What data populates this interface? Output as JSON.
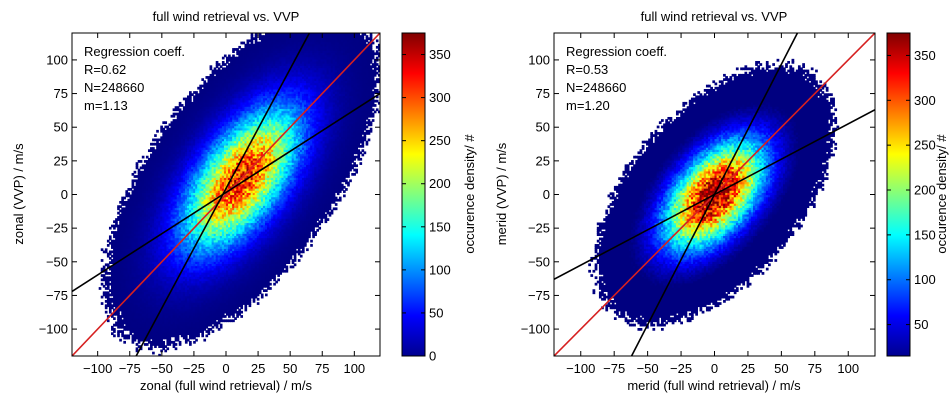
{
  "chart_data": [
    {
      "type": "heatmap",
      "title": "full wind retrieval vs. VVP",
      "xlabel": "zonal (full wind retrieval) / m/s",
      "ylabel": "zonal (VVP) / m/s",
      "xlim": [
        -120,
        120
      ],
      "ylim": [
        -120,
        120
      ],
      "xticks": [
        -100,
        -75,
        -50,
        -25,
        0,
        25,
        50,
        75,
        100
      ],
      "yticks": [
        -100,
        -75,
        -50,
        -25,
        0,
        25,
        50,
        75,
        100
      ],
      "xtick_labels": [
        "−100",
        "−75",
        "−50",
        "−25",
        "0",
        "25",
        "50",
        "75",
        "100"
      ],
      "ytick_labels": [
        "−100",
        "−75",
        "−50",
        "−25",
        "0",
        "25",
        "50",
        "75",
        "100"
      ],
      "annotation": [
        "Regression coeff.",
        "R=0.62",
        "N=248660",
        "m=1.13"
      ],
      "regression": {
        "R": 0.62,
        "N": 248660,
        "m": 1.13
      },
      "density": {
        "cx": 12,
        "cy": 12,
        "sx": 30,
        "sy": 35,
        "rho": 0.62,
        "peak": 320
      },
      "lines": [
        {
          "color": "#d62020",
          "points": [
            [
              -120,
              -120
            ],
            [
              120,
              120
            ]
          ]
        },
        {
          "color": "#000000",
          "points": [
            [
              -120,
              -72
            ],
            [
              120,
              75
            ]
          ]
        },
        {
          "color": "#000000",
          "points": [
            [
              -70,
              -120
            ],
            [
              65,
              120
            ]
          ]
        }
      ],
      "colorbar": {
        "label": "occurence density/ #",
        "range": [
          0,
          375
        ],
        "ticks": [
          0,
          50,
          100,
          150,
          200,
          250,
          300,
          350
        ],
        "tick_labels": [
          "0",
          "50",
          "100",
          "150",
          "200",
          "250",
          "300",
          "350"
        ]
      }
    },
    {
      "type": "heatmap",
      "title": "full wind retrieval vs. VVP",
      "xlabel": "merid (full wind retrieval) / m/s",
      "ylabel": "merid (VVP) / m/s",
      "xlim": [
        -120,
        120
      ],
      "ylim": [
        -120,
        120
      ],
      "xticks": [
        -100,
        -75,
        -50,
        -25,
        0,
        25,
        50,
        75,
        100
      ],
      "yticks": [
        -100,
        -75,
        -50,
        -25,
        0,
        25,
        50,
        75,
        100
      ],
      "xtick_labels": [
        "−100",
        "−75",
        "−50",
        "−25",
        "0",
        "25",
        "50",
        "75",
        "100"
      ],
      "ytick_labels": [
        "−100",
        "−75",
        "−50",
        "−25",
        "0",
        "25",
        "50",
        "75",
        "100"
      ],
      "annotation": [
        "Regression coeff.",
        "R=0.53",
        "N=248660",
        "m=1.20"
      ],
      "regression": {
        "R": 0.53,
        "N": 248660,
        "m": 1.2
      },
      "density": {
        "cx": 0,
        "cy": 0,
        "sx": 25,
        "sy": 27,
        "rho": 0.53,
        "peak": 375
      },
      "lines": [
        {
          "color": "#d62020",
          "points": [
            [
              -120,
              -120
            ],
            [
              120,
              120
            ]
          ]
        },
        {
          "color": "#000000",
          "points": [
            [
              -120,
              -63
            ],
            [
              120,
              63
            ]
          ]
        },
        {
          "color": "#000000",
          "points": [
            [
              -62,
              -120
            ],
            [
              62,
              120
            ]
          ]
        }
      ],
      "colorbar": {
        "label": "occurence density/ #",
        "range": [
          15,
          375
        ],
        "ticks": [
          50,
          100,
          150,
          200,
          250,
          300,
          350
        ],
        "tick_labels": [
          "50",
          "100",
          "150",
          "200",
          "250",
          "300",
          "350"
        ]
      }
    }
  ]
}
